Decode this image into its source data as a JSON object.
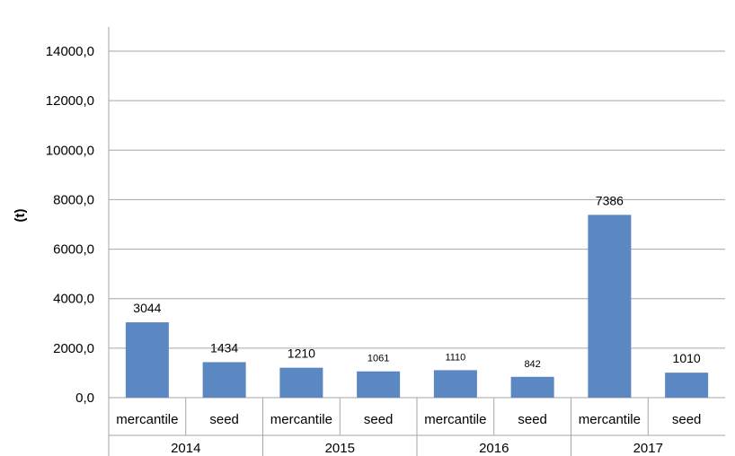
{
  "chart_data": {
    "type": "bar",
    "ylabel": "(t)",
    "ylim": [
      0,
      14000
    ],
    "yticks": [
      "0,0",
      "2000,0",
      "4000,0",
      "6000,0",
      "8000,0",
      "10000,0",
      "12000,0",
      "14000,0"
    ],
    "grid": true,
    "bar_color": "#5b87c3",
    "groups": [
      "2014",
      "2015",
      "2016",
      "2017"
    ],
    "categories": [
      "mercantile",
      "seed",
      "mercantile",
      "seed",
      "mercantile",
      "seed",
      "mercantile",
      "seed"
    ],
    "values": [
      3044,
      1434,
      1210,
      1061,
      1110,
      842,
      7386,
      1010
    ],
    "data_labels": [
      "3044",
      "1434",
      "1210",
      "1061",
      "1110",
      "842",
      "7386",
      "1010"
    ]
  }
}
